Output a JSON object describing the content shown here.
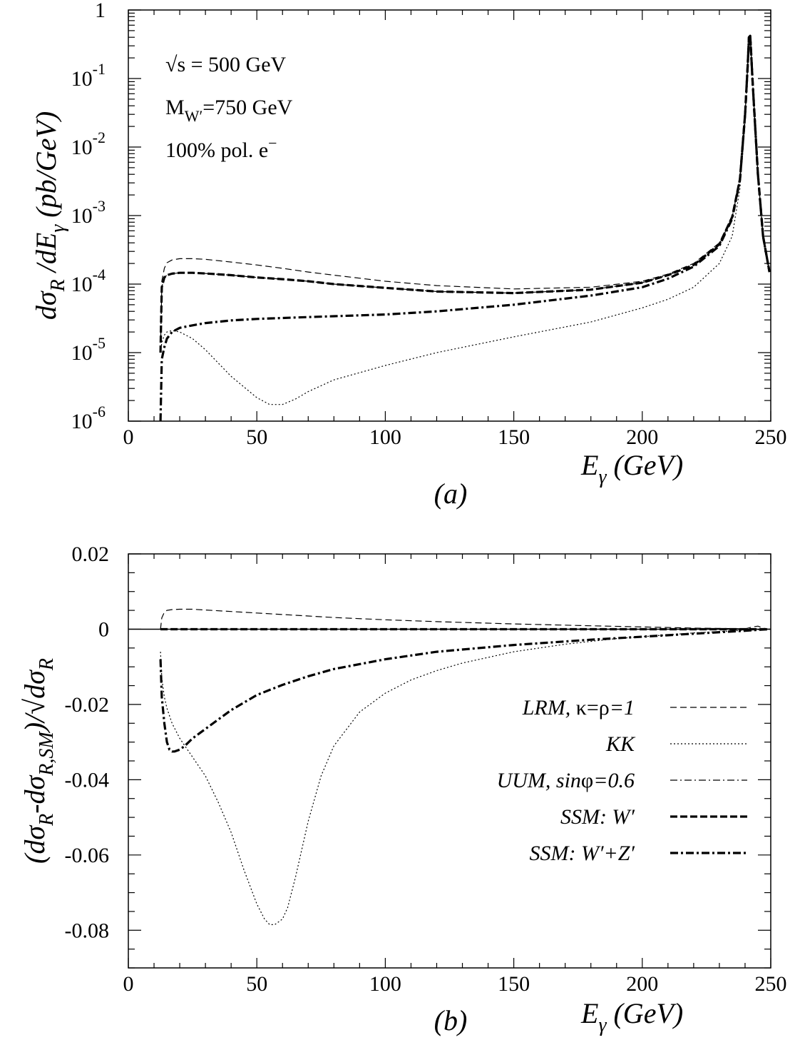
{
  "chart_data": [
    {
      "panel": "a",
      "type": "line",
      "panel_label": "(a)",
      "xlabel": "E_γ (GeV)",
      "ylabel": "dσ_R /dE_γ (pb/GeV)",
      "ylabel_parts": [
        "dσ",
        "R",
        " /dE",
        "γ",
        " (pb/GeV)"
      ],
      "xlabel_parts": [
        "E",
        "γ",
        " (GeV)"
      ],
      "xlim": [
        0,
        250
      ],
      "ylim": [
        1e-06,
        1
      ],
      "yscale": "log",
      "x_ticks": [
        "0",
        "50",
        "100",
        "150",
        "200",
        "250"
      ],
      "y_ticks": [
        {
          "base": "10",
          "exp": "-6"
        },
        {
          "base": "10",
          "exp": "-5"
        },
        {
          "base": "10",
          "exp": "-4"
        },
        {
          "base": "10",
          "exp": "-3"
        },
        {
          "base": "10",
          "exp": "-2"
        },
        {
          "base": "10",
          "exp": "-1"
        },
        {
          "base": "1",
          "exp": ""
        }
      ],
      "annotations": [
        {
          "id": "sqrt-s",
          "text": "√s = 500 GeV"
        },
        {
          "id": "mass",
          "text": "M",
          "sub": "W′",
          "tail": "=750 GeV"
        },
        {
          "id": "pol",
          "text": "100% pol. e",
          "sup": "−"
        }
      ],
      "series": [
        {
          "name": "LRM, κ=ρ=1",
          "style": "dashed-thin",
          "x": [
            12.5,
            13,
            14,
            15,
            17,
            20,
            25,
            30,
            40,
            50,
            60,
            70,
            80,
            100,
            120,
            150,
            180,
            200,
            210,
            220,
            230,
            235,
            238,
            240,
            241,
            241.5,
            242,
            243,
            245,
            247,
            249.5
          ],
          "y": [
            2e-05,
            0.00011,
            0.00017,
            0.000205,
            0.000225,
            0.000235,
            0.000235,
            0.00023,
            0.00021,
            0.00019,
            0.00017,
            0.00015,
            0.000135,
            0.00011,
            9.5e-05,
            8.5e-05,
            9e-05,
            0.00011,
            0.00014,
            0.0002,
            0.0004,
            0.001,
            0.0035,
            0.03,
            0.15,
            0.4,
            0.42,
            0.08,
            0.004,
            0.0005,
            0.00015
          ]
        },
        {
          "name": "KK",
          "style": "dotted",
          "x": [
            12.5,
            13,
            14,
            15,
            17,
            20,
            25,
            30,
            40,
            50,
            55,
            60,
            65,
            70,
            80,
            100,
            120,
            150,
            180,
            200,
            210,
            220,
            230,
            235,
            238,
            240,
            241,
            241.5,
            242,
            243,
            245,
            247,
            249.5
          ],
          "y": [
            1e-05,
            1.4e-05,
            1.8e-05,
            2e-05,
            2.1e-05,
            2e-05,
            1.6e-05,
            1.1e-05,
            4.5e-06,
            2.2e-06,
            1.75e-06,
            1.75e-06,
            2.1e-06,
            2.7e-06,
            4e-06,
            6.5e-06,
            1e-05,
            1.7e-05,
            2.8e-05,
            4.5e-05,
            6e-05,
            9e-05,
            0.0002,
            0.0005,
            0.0025,
            0.025,
            0.15,
            0.4,
            0.42,
            0.08,
            0.004,
            0.0005,
            0.00015
          ]
        },
        {
          "name": "UUM, sinφ=0.6",
          "style": "dashdot-thin",
          "x": [
            12.5,
            13,
            14,
            15,
            17,
            20,
            25,
            30,
            40,
            50,
            60,
            70,
            80,
            100,
            120,
            150,
            180,
            200,
            210,
            220,
            230,
            235,
            238,
            240,
            241,
            241.5,
            242,
            243,
            245,
            247,
            249.5
          ],
          "y": [
            1e-05,
            9e-05,
            0.000125,
            0.000135,
            0.000142,
            0.000146,
            0.000146,
            0.000143,
            0.000135,
            0.000125,
            0.000118,
            0.00011,
            0.0001,
            8.8e-05,
            7.8e-05,
            7.4e-05,
            8.3e-05,
            0.000105,
            0.000135,
            0.00019,
            0.00038,
            0.00095,
            0.0034,
            0.03,
            0.15,
            0.4,
            0.42,
            0.08,
            0.004,
            0.0005,
            0.00015
          ]
        },
        {
          "name": "SSM: W′",
          "style": "dashed-thick",
          "x": [
            12.5,
            13,
            14,
            15,
            17,
            20,
            25,
            30,
            40,
            50,
            60,
            70,
            80,
            100,
            120,
            150,
            180,
            200,
            210,
            220,
            230,
            235,
            238,
            240,
            241,
            241.5,
            242,
            243,
            245,
            247,
            249.5
          ],
          "y": [
            1e-05,
            9e-05,
            0.000125,
            0.000135,
            0.000142,
            0.000146,
            0.000146,
            0.000143,
            0.000135,
            0.000125,
            0.000118,
            0.00011,
            0.0001,
            8.8e-05,
            7.8e-05,
            7.4e-05,
            8.3e-05,
            0.000105,
            0.000135,
            0.00019,
            0.00038,
            0.00095,
            0.0034,
            0.03,
            0.15,
            0.4,
            0.42,
            0.08,
            0.004,
            0.0005,
            0.00015
          ]
        },
        {
          "name": "SSM: W′+Z′",
          "style": "dashdot-thick",
          "x": [
            12.5,
            13,
            14,
            15,
            17,
            20,
            25,
            30,
            40,
            50,
            60,
            70,
            80,
            100,
            120,
            150,
            180,
            200,
            210,
            220,
            230,
            235,
            238,
            240,
            241,
            241.5,
            242,
            243,
            245,
            247,
            249.5
          ],
          "y": [
            1e-06,
            8e-06,
            1.2e-05,
            1.6e-05,
            2e-05,
            2.3e-05,
            2.5e-05,
            2.7e-05,
            2.95e-05,
            3.1e-05,
            3.2e-05,
            3.3e-05,
            3.4e-05,
            3.6e-05,
            4e-05,
            5e-05,
            6.8e-05,
            9e-05,
            0.00012,
            0.00018,
            0.00036,
            0.0009,
            0.0033,
            0.03,
            0.15,
            0.4,
            0.42,
            0.08,
            0.004,
            0.0005,
            0.00015
          ]
        }
      ]
    },
    {
      "panel": "b",
      "type": "line",
      "panel_label": "(b)",
      "xlabel": "E_γ (GeV)",
      "ylabel": "(dσ_R-dσ_R,SM)/√dσ_R",
      "ylabel_parts": [
        "(dσ",
        "R",
        "-dσ",
        "R,SM",
        ")/√dσ",
        "R"
      ],
      "xlabel_parts": [
        "E",
        "γ",
        " (GeV)"
      ],
      "xlim": [
        0,
        250
      ],
      "ylim": [
        -0.09,
        0.02
      ],
      "x_ticks": [
        "0",
        "50",
        "100",
        "150",
        "200",
        "250"
      ],
      "y_ticks": [
        "-0.08",
        "-0.06",
        "-0.04",
        "-0.02",
        "0",
        "0.02"
      ],
      "legend_position": "right",
      "series": [
        {
          "name": "LRM, κ=ρ=1",
          "legend_parts": [
            "LRM, ",
            "κ=ρ",
            "=1"
          ],
          "style": "dashed-thin",
          "x": [
            12.5,
            13,
            14,
            15,
            17,
            20,
            25,
            30,
            40,
            50,
            60,
            70,
            80,
            100,
            120,
            150,
            180,
            200,
            220,
            230,
            240,
            243,
            245,
            247,
            249
          ],
          "y": [
            0.0,
            0.003,
            0.0045,
            0.005,
            0.0052,
            0.0053,
            0.0053,
            0.0051,
            0.0047,
            0.0043,
            0.0039,
            0.0035,
            0.0031,
            0.0025,
            0.002,
            0.0014,
            0.0009,
            0.0006,
            0.0003,
            0.0002,
            0.0001,
            0.0006,
            0.0008,
            0.0003,
            0.0
          ]
        },
        {
          "name": "KK",
          "legend_parts": [
            "KK"
          ],
          "style": "dotted",
          "x": [
            12.5,
            13,
            14,
            15,
            17,
            20,
            25,
            30,
            35,
            40,
            45,
            50,
            53,
            55,
            57,
            60,
            62,
            65,
            70,
            75,
            80,
            90,
            100,
            110,
            120,
            130,
            150,
            170,
            190,
            200,
            220,
            240,
            249
          ],
          "y": [
            -0.006,
            -0.013,
            -0.018,
            -0.021,
            -0.025,
            -0.029,
            -0.034,
            -0.039,
            -0.046,
            -0.054,
            -0.064,
            -0.073,
            -0.077,
            -0.0785,
            -0.0785,
            -0.077,
            -0.074,
            -0.066,
            -0.051,
            -0.039,
            -0.031,
            -0.022,
            -0.017,
            -0.0135,
            -0.011,
            -0.009,
            -0.006,
            -0.004,
            -0.0025,
            -0.002,
            -0.001,
            -0.0003,
            0.0
          ]
        },
        {
          "name": "UUM, sinφ=0.6",
          "legend_parts": [
            "UUM, ",
            "sin",
            "φ",
            "=0.6"
          ],
          "style": "dashdot-thin",
          "x": [
            12.5,
            249.5
          ],
          "y": [
            0.0,
            0.0
          ]
        },
        {
          "name": "SSM: W′",
          "legend_parts": [
            "SSM: W′"
          ],
          "style": "dashed-thick",
          "x": [
            12.5,
            249.5
          ],
          "y": [
            0.0,
            0.0
          ]
        },
        {
          "name": "SSM: W′+Z′",
          "legend_parts": [
            "SSM: W′+Z′"
          ],
          "style": "dashdot-thick",
          "x": [
            12.5,
            13,
            14,
            15,
            16,
            17,
            18,
            20,
            22,
            25,
            30,
            35,
            40,
            50,
            60,
            70,
            80,
            100,
            120,
            150,
            180,
            200,
            220,
            240,
            249
          ],
          "y": [
            -0.008,
            -0.018,
            -0.025,
            -0.03,
            -0.032,
            -0.0325,
            -0.0325,
            -0.032,
            -0.031,
            -0.029,
            -0.0265,
            -0.024,
            -0.0215,
            -0.0175,
            -0.0148,
            -0.0125,
            -0.0106,
            -0.008,
            -0.006,
            -0.0042,
            -0.0028,
            -0.002,
            -0.0012,
            -0.0004,
            0.0
          ]
        }
      ]
    }
  ]
}
